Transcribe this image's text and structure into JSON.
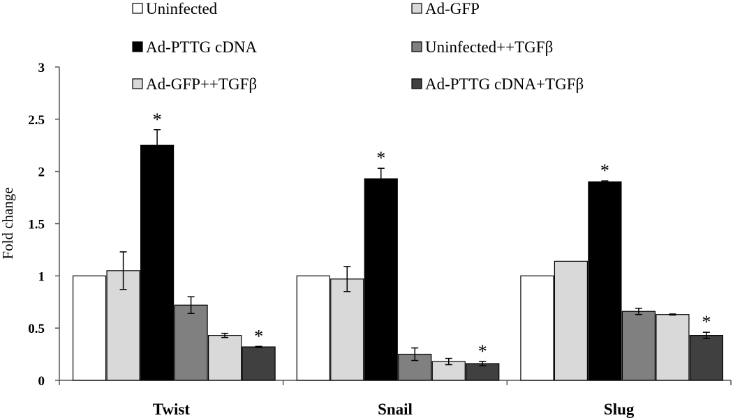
{
  "chart_data": {
    "type": "bar",
    "title": "",
    "xlabel": "",
    "ylabel": "Fold change",
    "ylim": [
      0,
      3
    ],
    "yticks": [
      "0",
      "0.5",
      "1",
      "1.5",
      "2",
      "2.5",
      "3"
    ],
    "grid": false,
    "legend_position": "top",
    "categories": [
      "Twist",
      "Snail",
      "Slug"
    ],
    "series": [
      {
        "name": "Uninfected",
        "color": "#ffffff",
        "values": [
          1.0,
          1.0,
          1.0
        ],
        "errors": [
          0,
          0,
          0
        ],
        "significant": [
          false,
          false,
          false
        ]
      },
      {
        "name": "Ad-GFP",
        "color": "#d9d9d9",
        "values": [
          1.05,
          0.97,
          1.14
        ],
        "errors": [
          0.18,
          0.12,
          0
        ],
        "significant": [
          false,
          false,
          false
        ]
      },
      {
        "name": "Ad-PTTG cDNA",
        "color": "#000000",
        "values": [
          2.25,
          1.93,
          1.9
        ],
        "errors": [
          0.15,
          0.1,
          0.01
        ],
        "significant": [
          true,
          true,
          true
        ]
      },
      {
        "name": "Uninfected++TGFβ",
        "color": "#808080",
        "values": [
          0.72,
          0.25,
          0.66
        ],
        "errors": [
          0.08,
          0.06,
          0.03
        ],
        "significant": [
          false,
          false,
          false
        ]
      },
      {
        "name": "Ad-GFP++TGFβ",
        "color": "#d9d9d9",
        "values": [
          0.43,
          0.18,
          0.63
        ],
        "errors": [
          0.02,
          0.03,
          0.005
        ],
        "significant": [
          false,
          false,
          false
        ]
      },
      {
        "name": "Ad-PTTG cDNA+TGFβ",
        "color": "#404040",
        "values": [
          0.32,
          0.16,
          0.43
        ],
        "errors": [
          0.005,
          0.02,
          0.03
        ],
        "significant": [
          true,
          true,
          true
        ]
      }
    ],
    "significance_marker": "*"
  }
}
